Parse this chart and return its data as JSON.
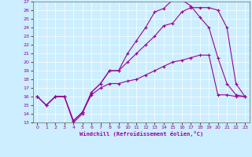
{
  "bg_color": "#cceeff",
  "line_color": "#990099",
  "xlim": [
    -0.5,
    23.5
  ],
  "ylim": [
    13,
    27
  ],
  "xticks": [
    0,
    1,
    2,
    3,
    4,
    5,
    6,
    7,
    8,
    9,
    10,
    11,
    12,
    13,
    14,
    15,
    16,
    17,
    18,
    19,
    20,
    21,
    22,
    23
  ],
  "yticks": [
    13,
    14,
    15,
    16,
    17,
    18,
    19,
    20,
    21,
    22,
    23,
    24,
    25,
    26,
    27
  ],
  "xlabel": "Windchill (Refroidissement éolien,°C)",
  "curve1_x": [
    0,
    1,
    2,
    3,
    4,
    5,
    6,
    7,
    8,
    9,
    10,
    11,
    12,
    13,
    14,
    15,
    16,
    17,
    18,
    19,
    20,
    21,
    22,
    23
  ],
  "curve1_y": [
    16,
    15,
    16,
    16,
    13,
    14,
    16.5,
    17.5,
    19,
    19,
    21,
    22.5,
    24,
    25.8,
    26.2,
    27.2,
    27.2,
    26.5,
    25.2,
    24,
    20.5,
    17.5,
    16.2,
    16
  ],
  "curve2_x": [
    0,
    1,
    2,
    3,
    4,
    5,
    6,
    7,
    8,
    9,
    10,
    11,
    12,
    13,
    14,
    15,
    16,
    17,
    18,
    19,
    20,
    21,
    22,
    23
  ],
  "curve2_y": [
    16,
    15,
    16,
    16,
    13.2,
    14.2,
    16.5,
    17.5,
    19,
    19,
    20,
    21,
    22,
    23,
    24.2,
    24.5,
    25.8,
    26.3,
    26.3,
    26.3,
    26.0,
    24,
    17.5,
    16.0
  ],
  "curve3_x": [
    0,
    1,
    2,
    3,
    4,
    5,
    6,
    7,
    8,
    9,
    10,
    11,
    12,
    13,
    14,
    15,
    16,
    17,
    18,
    19,
    20,
    21,
    22,
    23
  ],
  "curve3_y": [
    16,
    15,
    16,
    16,
    13.2,
    14.2,
    16.2,
    17,
    17.5,
    17.5,
    17.8,
    18.0,
    18.5,
    19.0,
    19.5,
    20,
    20.2,
    20.5,
    20.8,
    20.8,
    16.2,
    16.2,
    16.0,
    16.0
  ]
}
